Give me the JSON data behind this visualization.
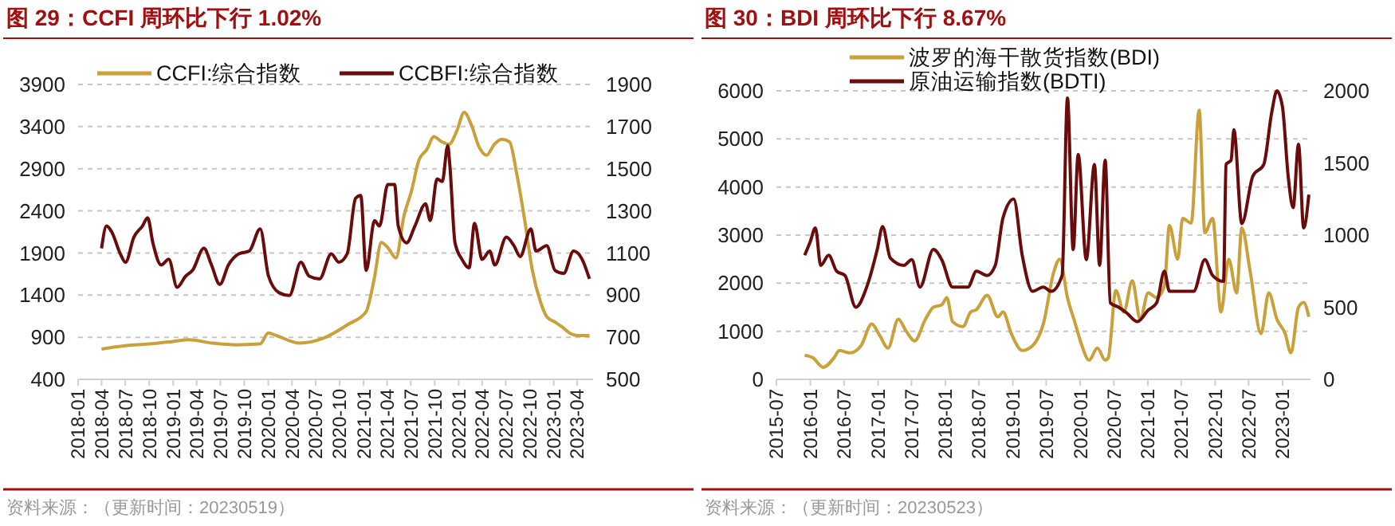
{
  "chart_data": [
    {
      "type": "line",
      "title": "图 29：CCFI 周环比下行 1.02%",
      "annotations": [
        "资料来源：（更新时间：20230519）"
      ],
      "legend": "top",
      "grid": "y",
      "line_style": "solid",
      "xlim": [
        "2018-01-01",
        "2023-06-01"
      ],
      "xticks": [
        "2018-01",
        "2018-04",
        "2018-07",
        "2018-10",
        "2019-01",
        "2019-04",
        "2019-07",
        "2019-10",
        "2020-01",
        "2020-04",
        "2020-07",
        "2020-10",
        "2021-01",
        "2021-04",
        "2021-07",
        "2021-10",
        "2022-01",
        "2022-04",
        "2022-07",
        "2022-10",
        "2023-01",
        "2023-04"
      ],
      "ylim": [
        400,
        3900
      ],
      "yticks": [
        400,
        900,
        1400,
        1900,
        2400,
        2900,
        3400,
        3900
      ],
      "y2lim": [
        500,
        1900
      ],
      "y2ticks": [
        500,
        700,
        900,
        1100,
        1300,
        1500,
        1700,
        1900
      ],
      "series": [
        {
          "name": "CCFI:综合指数",
          "color": "#c9a03a",
          "x": [
            "2018-04",
            "2018-07",
            "2018-10",
            "2019-01",
            "2019-03",
            "2019-06",
            "2019-09",
            "2019-12",
            "2020-01",
            "2020-02",
            "2020-05",
            "2020-08",
            "2020-11",
            "2021-01-10",
            "2021-02-10",
            "2021-03-10",
            "2021-04-05",
            "2021-05-05",
            "2021-06-05",
            "2021-07-05",
            "2021-08-01",
            "2021-09-01",
            "2021-09-28",
            "2021-10-28",
            "2021-11-25",
            "2021-12-25",
            "2022-01-22",
            "2022-02-20",
            "2022-03-20",
            "2022-04-18",
            "2022-05-18",
            "2022-06-15",
            "2022-07-15",
            "2022-08-12",
            "2022-09-12",
            "2022-10-10",
            "2022-11-10",
            "2022-12-06",
            "2023-01-06",
            "2023-02-03",
            "2023-03-03",
            "2023-04-01",
            "2023-05-18"
          ],
          "values": [
            760,
            800,
            820,
            850,
            870,
            830,
            810,
            820,
            950,
            920,
            830,
            890,
            1050,
            1200,
            1580,
            2025,
            1960,
            1840,
            2340,
            2650,
            3000,
            3130,
            3280,
            3220,
            3190,
            3350,
            3570,
            3410,
            3160,
            3060,
            3190,
            3250,
            3220,
            2840,
            2280,
            1710,
            1330,
            1140,
            1080,
            1020,
            950,
            920,
            920
          ]
        },
        {
          "name": "CCBFI:综合指数",
          "color": "#6b0c0c",
          "axis": "y2",
          "x": [
            "2018-04-01",
            "2018-04-20",
            "2018-05-10",
            "2018-06-12",
            "2018-07-02",
            "2018-08-03",
            "2018-09-05",
            "2018-09-25",
            "2018-10-15",
            "2018-11-16",
            "2018-12-15",
            "2019-01-16",
            "2019-02-18",
            "2019-03-16",
            "2019-04-29",
            "2019-05-28",
            "2019-06-29",
            "2019-08-01",
            "2019-09-10",
            "2019-10-20",
            "2019-12-01",
            "2020-01-02",
            "2020-02-12",
            "2020-03-22",
            "2020-05-05",
            "2020-06-06",
            "2020-07-16",
            "2020-08-30",
            "2020-09-28",
            "2020-10-30",
            "2020-12-01",
            "2020-12-21",
            "2021-01-11",
            "2021-02-12",
            "2021-03-03",
            "2021-04-04",
            "2021-04-30",
            "2021-05-14",
            "2021-06-15",
            "2021-07-17",
            "2021-08-27",
            "2021-09-14",
            "2021-10-10",
            "2021-10-30",
            "2021-11-20",
            "2021-11-28",
            "2021-12-18",
            "2022-01-14",
            "2022-02-10",
            "2022-03-03",
            "2022-04-01",
            "2022-04-30",
            "2022-05-20",
            "2022-07-03",
            "2022-08-01",
            "2022-08-25",
            "2022-10-05",
            "2022-10-25",
            "2022-12-05",
            "2023-01-06",
            "2023-02-08",
            "2023-03-18",
            "2023-04-20",
            "2023-05-18"
          ],
          "values": [
            1122,
            1228,
            1200,
            1096,
            1056,
            1175,
            1228,
            1267,
            1148,
            1043,
            1070,
            937,
            990,
            1017,
            1122,
            1043,
            951,
            1043,
            1096,
            1109,
            1214,
            990,
            911,
            898,
            1056,
            990,
            977,
            1096,
            1056,
            1096,
            1359,
            1373,
            1017,
            1254,
            1228,
            1425,
            1425,
            1228,
            1148,
            1228,
            1333,
            1254,
            1452,
            1439,
            1610,
            1518,
            1148,
            1069,
            1030,
            1241,
            1069,
            1109,
            1043,
            1175,
            1135,
            1083,
            1214,
            1109,
            1135,
            1017,
            1003,
            1109,
            1070,
            977
          ]
        }
      ]
    },
    {
      "type": "line",
      "title": "图 30：BDI 周环比下行 8.67%",
      "annotations": [
        "资料来源：（更新时间：20230523）"
      ],
      "legend": "top",
      "grid": "y",
      "line_style": "solid",
      "xlim": [
        "2015-07-01",
        "2023-06-01"
      ],
      "xticks": [
        "2015-07",
        "2016-01",
        "2016-07",
        "2017-01",
        "2017-07",
        "2018-01",
        "2018-07",
        "2019-01",
        "2019-07",
        "2020-01",
        "2020-07",
        "2021-01",
        "2021-07",
        "2022-01",
        "2022-07",
        "2023-01"
      ],
      "ylim": [
        0,
        6000
      ],
      "yticks": [
        0,
        1000,
        2000,
        3000,
        4000,
        5000,
        6000
      ],
      "y2lim": [
        0,
        2000
      ],
      "y2ticks": [
        0,
        500,
        1000,
        1500,
        2000
      ],
      "series": [
        {
          "name": "波罗的海干散货指数(BDI)",
          "color": "#c9a03a",
          "x": [
            "2015-12-01",
            "2016-01-14",
            "2016-03-10",
            "2016-05-08",
            "2016-06-06",
            "2016-08-03",
            "2016-10-01",
            "2016-11-28",
            "2017-01-12",
            "2017-02-24",
            "2017-04-21",
            "2017-06-03",
            "2017-07-18",
            "2017-09-15",
            "2017-10-28",
            "2017-12-12",
            "2018-01-09",
            "2018-02-09",
            "2018-04-06",
            "2018-05-18",
            "2018-06-18",
            "2018-08-15",
            "2018-10-12",
            "2018-11-09",
            "2018-12-24",
            "2019-02-21",
            "2019-04-18",
            "2019-06-15",
            "2019-08-12",
            "2019-09-12",
            "2019-10-24",
            "2019-12-06",
            "2020-01-06",
            "2020-02-18",
            "2020-04-03",
            "2020-05-15",
            "2020-06-01",
            "2020-07-12",
            "2020-08-24",
            "2020-10-09",
            "2020-11-21",
            "2021-01-03",
            "2021-02-18",
            "2021-04-01",
            "2021-04-28",
            "2021-06-12",
            "2021-07-09",
            "2021-08-24",
            "2021-10-06",
            "2021-11-06",
            "2021-12-18",
            "2022-02-01",
            "2022-03-15",
            "2022-04-27",
            "2022-05-25",
            "2022-07-09",
            "2022-09-06",
            "2022-10-18",
            "2022-12-01",
            "2023-01-15",
            "2023-02-15",
            "2023-03-28",
            "2023-04-25",
            "2023-05-23"
          ],
          "values": [
            500,
            450,
            250,
            450,
            600,
            550,
            700,
            1150,
            900,
            650,
            1250,
            1000,
            800,
            1250,
            1500,
            1550,
            1700,
            1200,
            1100,
            1400,
            1450,
            1750,
            1300,
            1400,
            950,
            600,
            700,
            1150,
            2250,
            2500,
            1700,
            1150,
            750,
            400,
            650,
            400,
            450,
            1850,
            1400,
            2050,
            1250,
            1800,
            1700,
            1950,
            3200,
            2500,
            3350,
            3250,
            5600,
            3050,
            3350,
            1400,
            2500,
            1800,
            3150,
            2250,
            950,
            1800,
            1250,
            950,
            550,
            1500,
            1600,
            1300
          ]
        },
        {
          "name": "原油运输指数(BDTI)",
          "color": "#6b0c0c",
          "axis": "y2",
          "x": [
            "2015-12-01",
            "2015-12-30",
            "2016-01-28",
            "2016-02-26",
            "2016-04-09",
            "2016-05-22",
            "2016-07-06",
            "2016-09-03",
            "2016-11-01",
            "2016-12-28",
            "2017-01-26",
            "2017-03-09",
            "2017-05-21",
            "2017-07-03",
            "2017-08-16",
            "2017-10-28",
            "2017-12-12",
            "2018-02-09",
            "2018-05-03",
            "2018-06-18",
            "2018-08-15",
            "2018-09-28",
            "2018-11-09",
            "2019-01-06",
            "2019-02-21",
            "2019-04-18",
            "2019-06-15",
            "2019-07-28",
            "2019-09-25",
            "2019-10-24",
            "2019-11-24",
            "2019-12-21",
            "2020-02-03",
            "2020-03-18",
            "2020-04-15",
            "2020-05-15",
            "2020-06-12",
            "2020-07-27",
            "2020-09-09",
            "2020-11-06",
            "2021-01-03",
            "2021-02-18",
            "2021-04-01",
            "2021-04-28",
            "2021-06-27",
            "2021-09-06",
            "2021-11-06",
            "2021-12-18",
            "2022-02-15",
            "2022-03-01",
            "2022-03-28",
            "2022-04-12",
            "2022-05-25",
            "2022-07-24",
            "2022-09-21",
            "2022-11-03",
            "2022-12-01",
            "2022-12-31",
            "2023-01-31",
            "2023-02-27",
            "2023-03-28",
            "2023-04-25",
            "2023-05-23"
          ],
          "values": [
            860,
            950,
            1050,
            790,
            860,
            750,
            720,
            500,
            640,
            900,
            1060,
            840,
            790,
            830,
            640,
            900,
            830,
            640,
            640,
            750,
            720,
            790,
            1120,
            1250,
            860,
            610,
            640,
            610,
            720,
            1950,
            900,
            1560,
            830,
            1490,
            790,
            1520,
            530,
            500,
            460,
            400,
            480,
            530,
            750,
            610,
            610,
            610,
            830,
            720,
            680,
            1490,
            1520,
            1730,
            1080,
            1410,
            1490,
            1850,
            2000,
            1890,
            1410,
            1190,
            1630,
            1050,
            1280
          ]
        }
      ]
    }
  ]
}
